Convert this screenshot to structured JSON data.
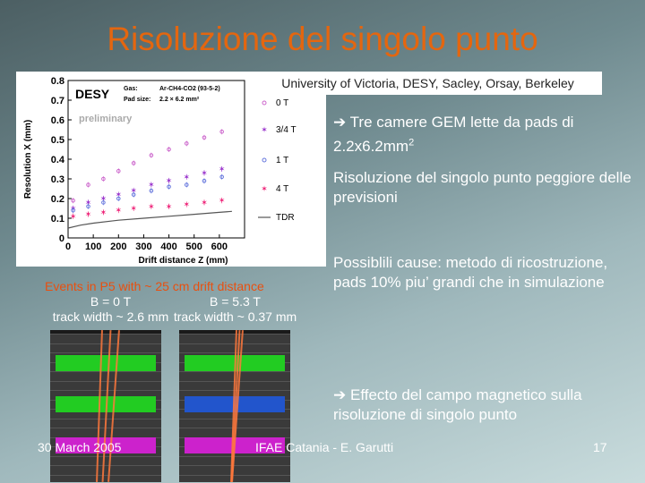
{
  "slide": {
    "title": "Risoluzione del singolo punto",
    "affiliation": "University of Victoria, DESY, Sacley, Orsay, Berkeley",
    "bullets": [
      "Tre camere GEM lette da pads di 2.2x6.2mm2",
      "Risoluzione del singolo punto peggiore delle previsioni",
      "Possiblili cause: metodo di ricostruzione, pads 10% piu’ grandi che in simulazione",
      "Effecto del campo magnetico sulla risoluzione di singolo punto"
    ],
    "arrow_glyph": "➔",
    "footer": {
      "date": "30 March 2005",
      "center": "IFAE Catania - E. Garutti",
      "page": "17"
    }
  },
  "plot": {
    "label_desy": "DESY",
    "label_prelim": "preliminary",
    "gas_label": "Gas:",
    "gas_value": "Ar-CH4-CO2 (93-5-2)",
    "pad_label": "Pad size:",
    "pad_value": "2.2 × 6.2 mm²",
    "xlabel": "Drift distance Z (mm)",
    "ylabel": "Resolution X (mm)",
    "legend": [
      "0 T",
      "3/4 T",
      "1 T",
      "4 T",
      "TDR"
    ]
  },
  "chart_data": {
    "type": "scatter",
    "title": "",
    "xlabel": "Drift distance Z (mm)",
    "ylabel": "Resolution X (mm)",
    "xlim": [
      0,
      700
    ],
    "ylim": [
      0,
      0.8
    ],
    "x_ticks": [
      0,
      100,
      200,
      300,
      400,
      500,
      600
    ],
    "y_ticks": [
      0.1,
      0.2,
      0.3,
      0.4,
      0.5,
      0.6,
      0.7,
      0.8
    ],
    "legend_position": "right",
    "series": [
      {
        "name": "0 T",
        "color": "#cc66cc",
        "marker": "circle",
        "x": [
          20,
          80,
          140,
          200,
          260,
          330,
          400,
          470,
          540,
          610
        ],
        "y": [
          0.19,
          0.27,
          0.3,
          0.34,
          0.38,
          0.42,
          0.45,
          0.48,
          0.51,
          0.54
        ]
      },
      {
        "name": "3/4 T",
        "color": "#9933cc",
        "marker": "star",
        "x": [
          20,
          80,
          140,
          200,
          260,
          330,
          400,
          470,
          540,
          610
        ],
        "y": [
          0.15,
          0.18,
          0.2,
          0.22,
          0.24,
          0.27,
          0.29,
          0.31,
          0.33,
          0.35
        ]
      },
      {
        "name": "1 T",
        "color": "#6677dd",
        "marker": "circle",
        "x": [
          20,
          80,
          140,
          200,
          260,
          330,
          400,
          470,
          540,
          610
        ],
        "y": [
          0.14,
          0.16,
          0.18,
          0.2,
          0.22,
          0.24,
          0.26,
          0.27,
          0.29,
          0.31
        ]
      },
      {
        "name": "4 T",
        "color": "#ee2277",
        "marker": "star",
        "x": [
          20,
          80,
          140,
          200,
          260,
          330,
          400,
          470,
          540,
          610
        ],
        "y": [
          0.11,
          0.12,
          0.13,
          0.14,
          0.15,
          0.16,
          0.16,
          0.17,
          0.18,
          0.19
        ]
      },
      {
        "name": "TDR",
        "color": "#555555",
        "marker": "line",
        "x": [
          0,
          50,
          100,
          200,
          300,
          400,
          500,
          600,
          650
        ],
        "y": [
          0.05,
          0.065,
          0.075,
          0.09,
          0.1,
          0.11,
          0.12,
          0.13,
          0.135
        ]
      }
    ]
  },
  "events": {
    "header": "Events in P5 with ~ 25 cm drift distance",
    "left_field": "B = 0 T",
    "left_length": "track width ~ 2.6 mm",
    "right_field": "B = 5.3 T",
    "right_length": "track width ~ 0.37 mm"
  },
  "colors": {
    "title": "#e4660f",
    "band_green": "#22cc22",
    "band_blue": "#2255cc",
    "band_magenta": "#cc22cc"
  }
}
